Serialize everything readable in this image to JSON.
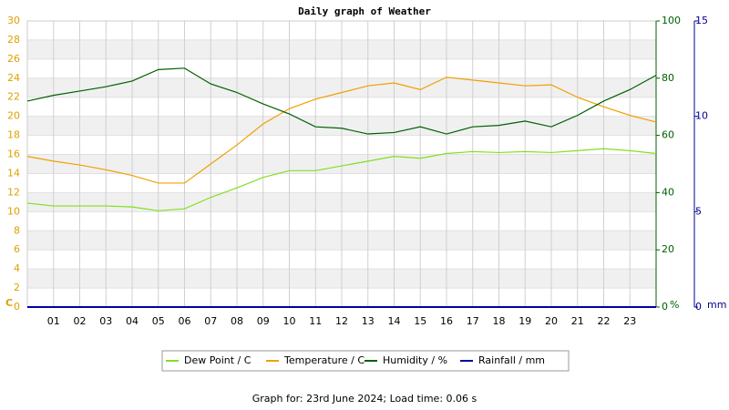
{
  "chart_data": {
    "type": "line",
    "title": "Daily graph of Weather",
    "note": "Graph for: 23rd June 2024; Load time: 0.06 s",
    "y_label": "C",
    "y2_label": "%",
    "y3_label": "mm",
    "x": [
      0,
      1,
      2,
      3,
      4,
      5,
      6,
      7,
      8,
      9,
      10,
      11,
      12,
      13,
      14,
      15,
      16,
      17,
      18,
      19,
      20,
      21,
      22,
      23,
      24
    ],
    "xlim": [
      0,
      24
    ],
    "xticks": [
      {
        "value": 1,
        "label": "01"
      },
      {
        "value": 2,
        "label": "02"
      },
      {
        "value": 3,
        "label": "03"
      },
      {
        "value": 4,
        "label": "04"
      },
      {
        "value": 5,
        "label": "05"
      },
      {
        "value": 6,
        "label": "06"
      },
      {
        "value": 7,
        "label": "07"
      },
      {
        "value": 8,
        "label": "08"
      },
      {
        "value": 9,
        "label": "09"
      },
      {
        "value": 10,
        "label": "10"
      },
      {
        "value": 11,
        "label": "11"
      },
      {
        "value": 12,
        "label": "12"
      },
      {
        "value": 13,
        "label": "13"
      },
      {
        "value": 14,
        "label": "14"
      },
      {
        "value": 15,
        "label": "15"
      },
      {
        "value": 16,
        "label": "16"
      },
      {
        "value": 17,
        "label": "17"
      },
      {
        "value": 18,
        "label": "18"
      },
      {
        "value": 19,
        "label": "19"
      },
      {
        "value": 20,
        "label": "20"
      },
      {
        "value": 21,
        "label": "21"
      },
      {
        "value": 22,
        "label": "22"
      },
      {
        "value": 23,
        "label": "23"
      }
    ],
    "ylim": [
      0,
      30
    ],
    "yticks": [
      0,
      2,
      4,
      6,
      8,
      10,
      12,
      14,
      16,
      18,
      20,
      22,
      24,
      26,
      28,
      30
    ],
    "y2lim": [
      0,
      100
    ],
    "y2ticks": [
      0,
      20,
      40,
      60,
      80,
      100
    ],
    "y3lim": [
      0,
      15
    ],
    "y3ticks": [
      0,
      5,
      10,
      15
    ],
    "grid": true,
    "series": [
      {
        "name": "Dew Point / C",
        "color": "#80e020",
        "values": [
          10.9,
          10.6,
          10.6,
          10.6,
          10.5,
          10.1,
          10.3,
          11.5,
          12.5,
          13.6,
          14.3,
          14.3,
          14.8,
          15.3,
          15.8,
          15.6,
          16.1,
          16.3,
          16.2,
          16.3,
          16.2,
          16.4,
          16.6,
          16.4,
          16.1
        ]
      },
      {
        "name": "Temperature / C",
        "color": "#f0a000",
        "values": [
          15.8,
          15.3,
          14.9,
          14.4,
          13.8,
          13.0,
          13.0,
          15.0,
          17.0,
          19.2,
          20.8,
          21.8,
          22.5,
          23.2,
          23.5,
          22.8,
          24.1,
          23.8,
          23.5,
          23.2,
          23.3,
          22.0,
          21.0,
          20.1,
          19.4
        ]
      },
      {
        "name": "Humidity / %",
        "color": "#006000",
        "axis": "y2",
        "values": [
          72,
          74,
          75.5,
          77,
          79,
          83,
          83.5,
          78,
          75,
          71,
          67.5,
          63,
          62.5,
          60.5,
          61,
          63,
          60.5,
          63,
          63.5,
          65,
          63,
          67,
          72,
          76,
          81
        ]
      },
      {
        "name": "Rainfall / mm",
        "color": "#0000a0",
        "axis": "y3",
        "values": [
          0,
          0,
          0,
          0,
          0,
          0,
          0,
          0,
          0,
          0,
          0,
          0,
          0,
          0,
          0,
          0,
          0,
          0,
          0,
          0,
          0,
          0,
          0,
          0,
          0
        ]
      }
    ]
  }
}
